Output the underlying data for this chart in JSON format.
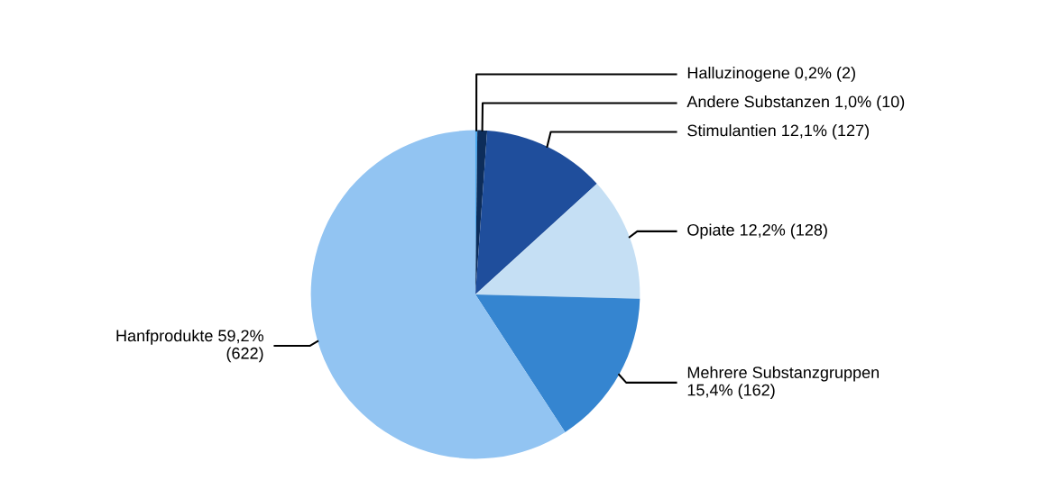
{
  "chart_data": {
    "type": "pie",
    "categories": [
      "Halluzinogene",
      "Andere Substanzen",
      "Stimulantien",
      "Opiate",
      "Mehrere Substanzgruppen",
      "Hanfprodukte"
    ],
    "values": [
      2,
      10,
      127,
      128,
      162,
      622
    ],
    "value_labels": [
      "0,2% (2)",
      "1,0% (10)",
      "12,1% (127)",
      "12,2% (128)",
      "15,4% (162)",
      "59,2% (622)"
    ],
    "colors": [
      "#4aa8ee",
      "#0d2d5a",
      "#1f4e9c",
      "#c5dff4",
      "#3585d0",
      "#92c4f2"
    ]
  }
}
